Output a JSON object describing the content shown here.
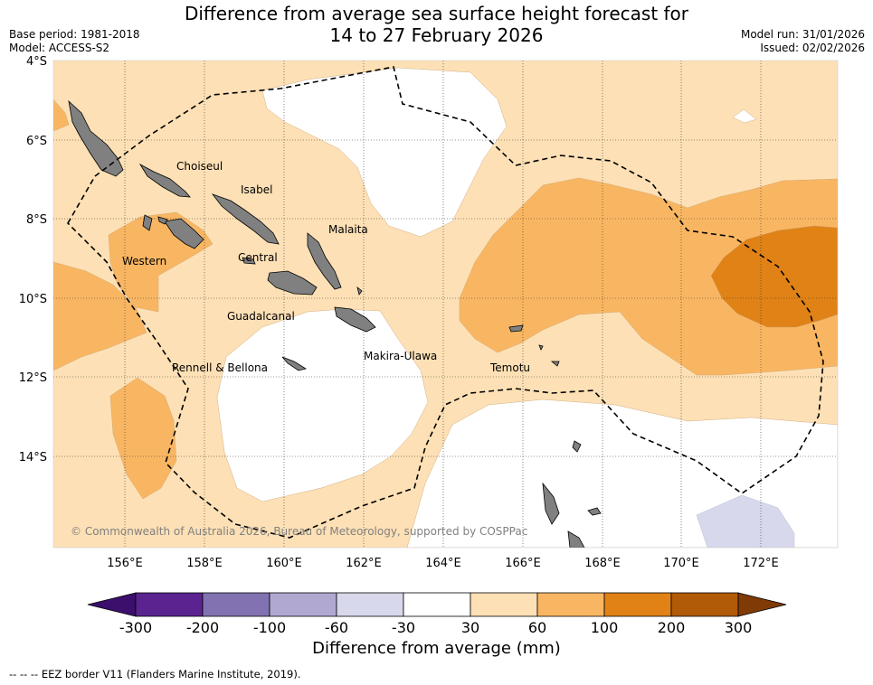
{
  "header": {
    "title_line1": "Difference from average sea surface height forecast for",
    "title_line2": "14 to 27 February 2026",
    "base_period": "Base period: 1981-2018",
    "model": "Model: ACCESS-S2",
    "model_run": "Model run: 31/01/2026",
    "issued": "Issued: 02/02/2026"
  },
  "map": {
    "lat_labels": [
      "4°S",
      "6°S",
      "8°S",
      "10°S",
      "12°S",
      "14°S"
    ],
    "lon_labels": [
      "156°E",
      "158°E",
      "160°E",
      "162°E",
      "164°E",
      "166°E",
      "168°E",
      "170°E",
      "172°E"
    ],
    "provinces": [
      "Choiseul",
      "Isabel",
      "Malaita",
      "Western",
      "Central",
      "Guadalcanal",
      "Makira-Ulawa",
      "Rennell & Bellona",
      "Temotu"
    ],
    "copyright": "© Commonwealth of Australia 2026, Bureau of Meteorology, supported by COSPPac",
    "colors": {
      "ocean_neutral": "#ffffff",
      "pos_30_60": "#fde0b5",
      "pos_60_100": "#f9b662",
      "pos_100_200": "#e08216",
      "neg_30_60": "#d8d8ec",
      "land": "#808080"
    }
  },
  "colorbar": {
    "title": "Difference from average (mm)",
    "ticks": [
      "-300",
      "-200",
      "-100",
      "-60",
      "-30",
      "30",
      "60",
      "100",
      "200",
      "300"
    ],
    "colors": [
      "#3b0f6b",
      "#5a2390",
      "#8272b2",
      "#b1a8d2",
      "#d8d8ec",
      "#ffffff",
      "#fde0b5",
      "#f9b662",
      "#e08216",
      "#b15a08",
      "#7f3a05"
    ]
  },
  "legend": {
    "eez_note": "--  --  -- EEZ border V11 (Flanders Marine Institute, 2019)."
  }
}
